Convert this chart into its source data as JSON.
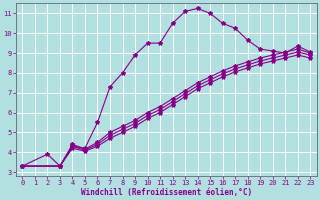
{
  "xlabel": "Windchill (Refroidissement éolien,°C)",
  "background_color": "#b2dfdf",
  "grid_color": "#ffffff",
  "line_color": "#880088",
  "xlim_min": -0.5,
  "xlim_max": 23.5,
  "ylim_min": 2.8,
  "ylim_max": 11.5,
  "xticks": [
    0,
    1,
    2,
    3,
    4,
    5,
    6,
    7,
    8,
    9,
    10,
    11,
    12,
    13,
    14,
    15,
    16,
    17,
    18,
    19,
    20,
    21,
    22,
    23
  ],
  "yticks": [
    3,
    4,
    5,
    6,
    7,
    8,
    9,
    10,
    11
  ],
  "line1_x": [
    0,
    2,
    3,
    4,
    5,
    6,
    7,
    8,
    9,
    10,
    11,
    12,
    13,
    14,
    15,
    16,
    17,
    18,
    19,
    20,
    21,
    22,
    23
  ],
  "line1_y": [
    3.3,
    3.9,
    3.3,
    4.3,
    4.2,
    5.5,
    7.3,
    8.0,
    8.9,
    9.5,
    9.5,
    10.5,
    11.1,
    11.25,
    11.0,
    10.5,
    10.25,
    9.65,
    9.2,
    9.1,
    9.0,
    9.35,
    9.05
  ],
  "line2_x": [
    0,
    3,
    4,
    5,
    6,
    7,
    8,
    9,
    10,
    11,
    12,
    13,
    14,
    15,
    16,
    17,
    18,
    19,
    20,
    21,
    22,
    23
  ],
  "line2_y": [
    3.3,
    3.3,
    4.4,
    4.15,
    4.5,
    5.0,
    5.3,
    5.6,
    6.0,
    6.3,
    6.7,
    7.1,
    7.5,
    7.8,
    8.1,
    8.35,
    8.55,
    8.75,
    8.9,
    9.05,
    9.2,
    9.0
  ],
  "line3_x": [
    0,
    3,
    4,
    5,
    6,
    7,
    8,
    9,
    10,
    11,
    12,
    13,
    14,
    15,
    16,
    17,
    18,
    19,
    20,
    21,
    22,
    23
  ],
  "line3_y": [
    3.3,
    3.3,
    4.3,
    4.1,
    4.4,
    4.85,
    5.15,
    5.45,
    5.85,
    6.15,
    6.55,
    6.95,
    7.35,
    7.65,
    7.95,
    8.2,
    8.4,
    8.6,
    8.75,
    8.9,
    9.05,
    8.9
  ],
  "line4_x": [
    0,
    3,
    4,
    5,
    6,
    7,
    8,
    9,
    10,
    11,
    12,
    13,
    14,
    15,
    16,
    17,
    18,
    19,
    20,
    21,
    22,
    23
  ],
  "line4_y": [
    3.3,
    3.3,
    4.2,
    4.05,
    4.3,
    4.7,
    5.0,
    5.3,
    5.7,
    6.0,
    6.4,
    6.8,
    7.2,
    7.5,
    7.8,
    8.05,
    8.25,
    8.45,
    8.6,
    8.75,
    8.9,
    8.75
  ]
}
